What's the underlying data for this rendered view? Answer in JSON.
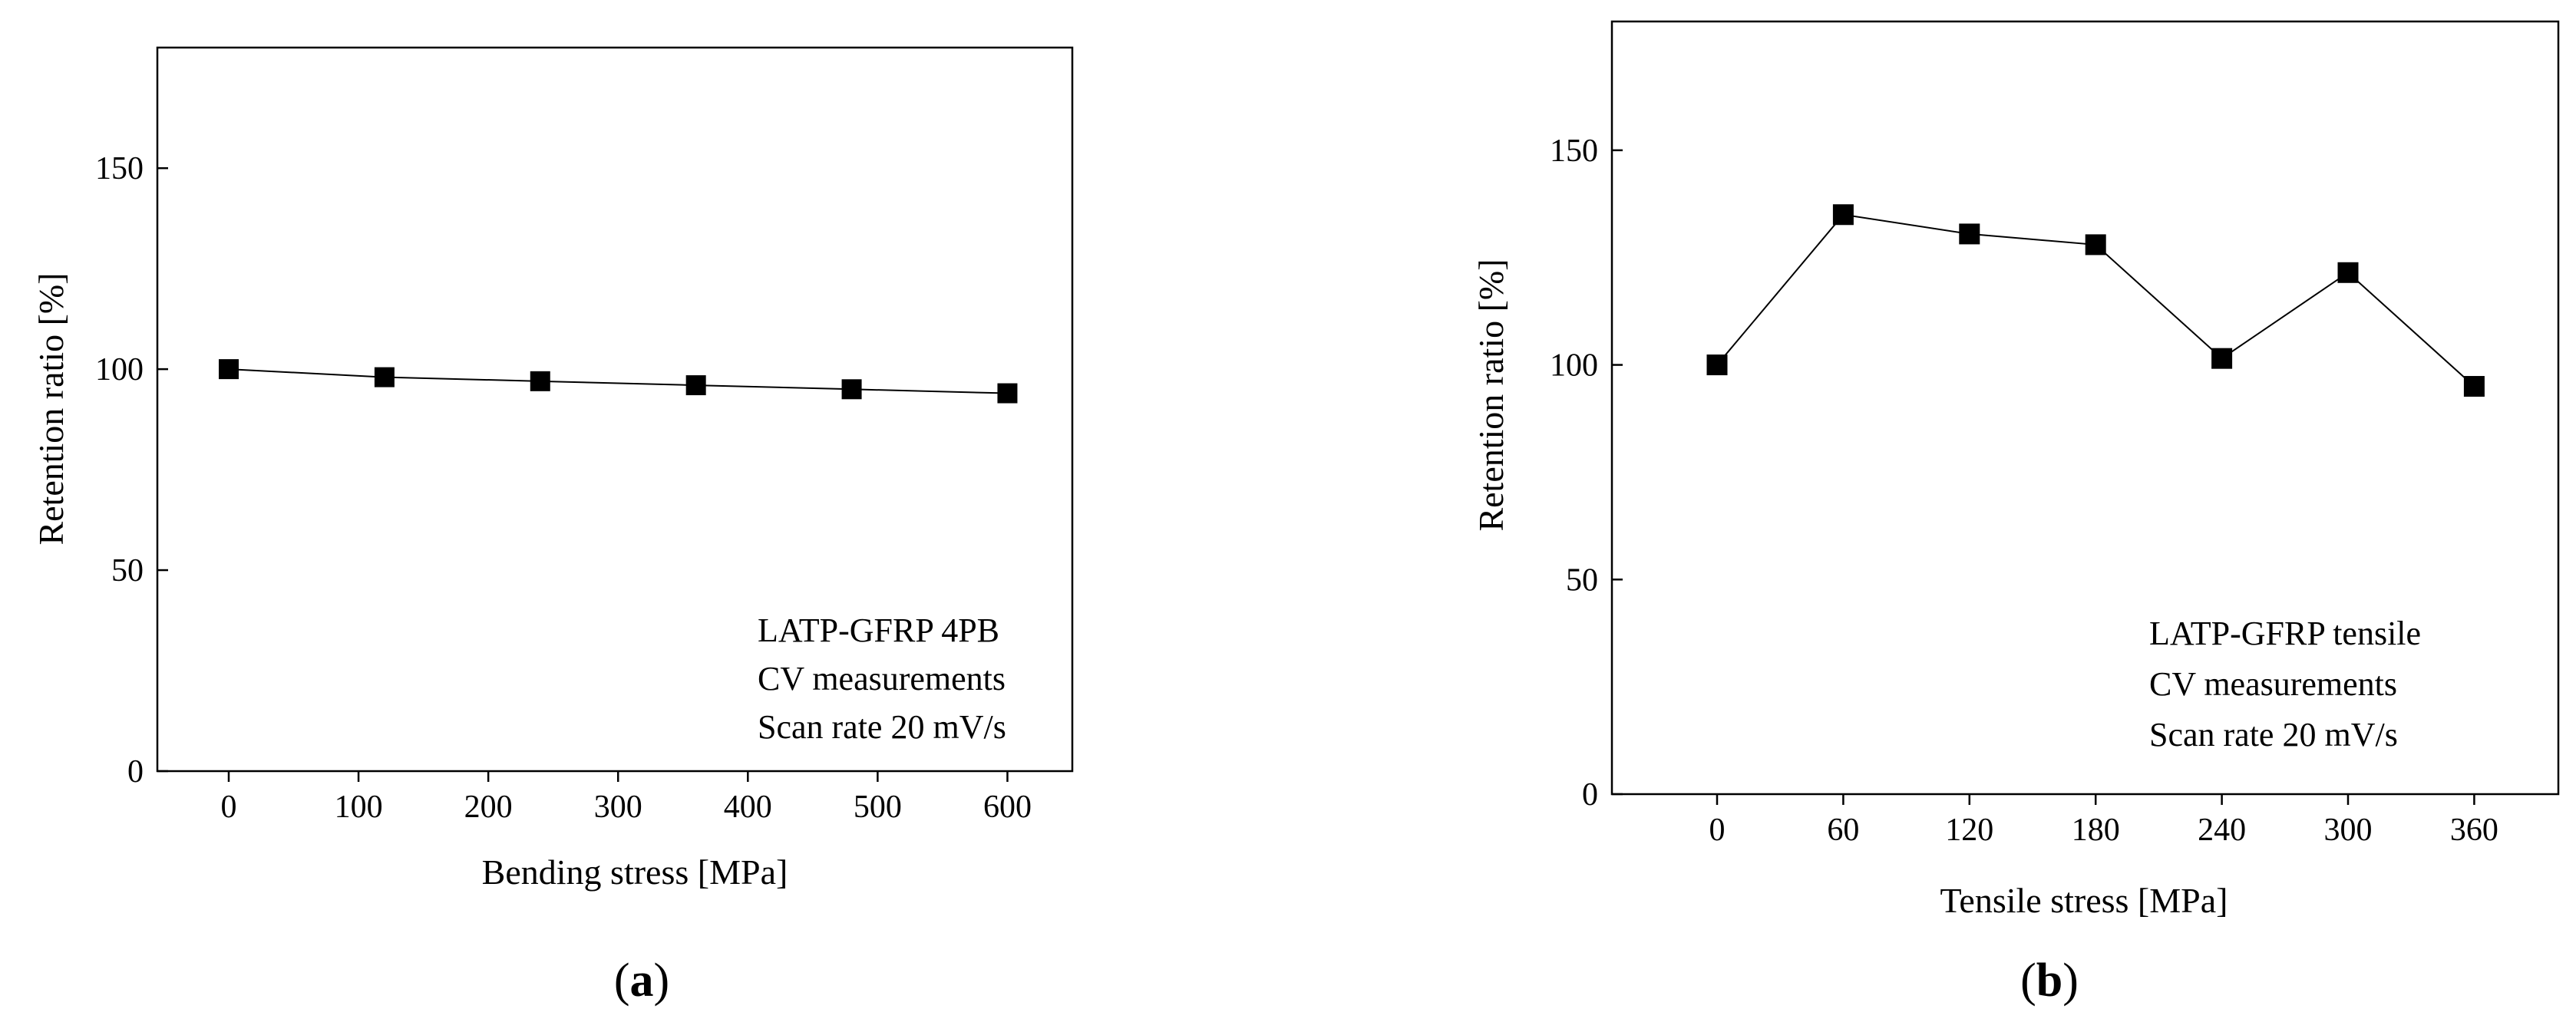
{
  "chart_data": [
    {
      "panel": "a",
      "type": "line",
      "markers": "square",
      "x": [
        0,
        120,
        240,
        360,
        480,
        600
      ],
      "y": [
        100,
        98,
        97,
        96,
        95,
        94
      ],
      "xlabel": "Bending stress [MPa]",
      "ylabel": "Retention ratio [%]",
      "xticks": [
        "0",
        "100",
        "200",
        "300",
        "400",
        "500",
        "600"
      ],
      "yticks": [
        "0",
        "50",
        "100",
        "150"
      ],
      "xlim": [
        -55,
        650
      ],
      "ylim": [
        0,
        180
      ],
      "annotations": [
        "LATP-GFRP 4PB",
        "CV measurements",
        "Scan rate 20 mV/s"
      ],
      "grid": false,
      "legend": "none"
    },
    {
      "panel": "b",
      "type": "line",
      "markers": "square",
      "x": [
        0,
        60,
        120,
        180,
        240,
        300,
        360
      ],
      "y": [
        100,
        135,
        130.5,
        128,
        101.5,
        121.5,
        95
      ],
      "xlabel": "Tensile stress [MPa]",
      "ylabel": "Retention ratio [%]",
      "xticks": [
        "0",
        "60",
        "120",
        "180",
        "240",
        "300",
        "360"
      ],
      "yticks": [
        "0",
        "50",
        "100",
        "150"
      ],
      "xlim": [
        -50,
        400
      ],
      "ylim": [
        0,
        180
      ],
      "annotations": [
        "LATP-GFRP tensile",
        "CV measurements",
        "Scan rate 20 mV/s"
      ],
      "grid": false,
      "legend": "none"
    }
  ],
  "panel_labels": {
    "a": {
      "open": "(",
      "letter": "a",
      "close": ")"
    },
    "b": {
      "open": "(",
      "letter": "b",
      "close": ")"
    }
  }
}
